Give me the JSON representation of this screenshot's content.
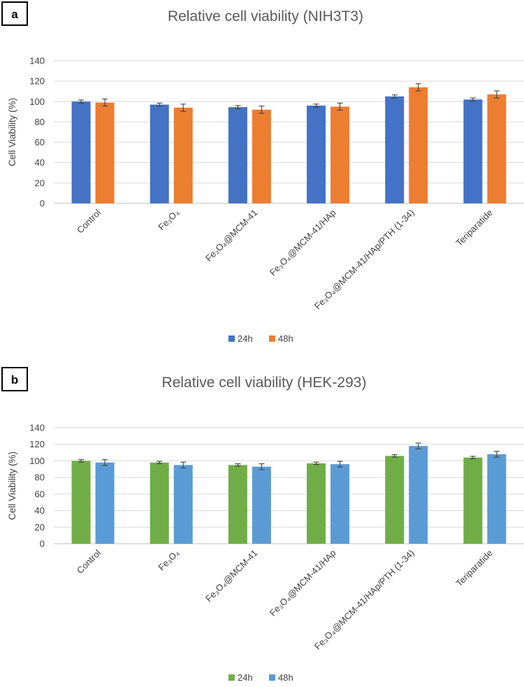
{
  "chart_data": [
    {
      "panel": "a",
      "type": "bar",
      "title": "Relative cell viability (NIH3T3)",
      "xlabel": "",
      "ylabel": "Cell Viability (%)",
      "ylim": [
        0,
        140
      ],
      "yticks": [
        0,
        20,
        40,
        60,
        80,
        100,
        120,
        140
      ],
      "grid": true,
      "legend": "bottom",
      "categories": [
        "Control",
        "Fe₃O₄",
        "Fe₃O₄@MCM-41",
        "Fe₃O₄@MCM-41/HAp",
        "Fe₃O₄@MCM-41/HAp/PTH (1-34)",
        "Teriparatide"
      ],
      "series": [
        {
          "name": "24h",
          "color": "#4472c4",
          "values": [
            100,
            97,
            94.5,
            96,
            105,
            102
          ],
          "errors": [
            1.5,
            1.5,
            1.5,
            1.5,
            1.5,
            1.5
          ]
        },
        {
          "name": "48h",
          "color": "#ed7d31",
          "values": [
            99,
            94,
            92,
            95,
            114,
            107
          ],
          "errors": [
            3.5,
            3.5,
            3.5,
            3.5,
            3.5,
            3.5
          ]
        }
      ]
    },
    {
      "panel": "b",
      "type": "bar",
      "title": "Relative cell viability (HEK-293)",
      "xlabel": "",
      "ylabel": "Cell Viability (%)",
      "ylim": [
        0,
        140
      ],
      "yticks": [
        0,
        20,
        40,
        60,
        80,
        100,
        120,
        140
      ],
      "grid": true,
      "legend": "bottom",
      "categories": [
        "Control",
        "Fe₃O₄",
        "Fe₃O₄@MCM-41",
        "Fe₃O₄@MCM-41/HAp",
        "Fe₃O₄@MCM-41/HAp/PTH (1-34)",
        "Teriparatide"
      ],
      "series": [
        {
          "name": "24h",
          "color": "#70ad47",
          "values": [
            100,
            98,
            95,
            97,
            106,
            104
          ],
          "errors": [
            1.5,
            1.5,
            1.5,
            1.5,
            1.5,
            1.5
          ]
        },
        {
          "name": "48h",
          "color": "#5b9bd5",
          "values": [
            98,
            95,
            93,
            96,
            118,
            108
          ],
          "errors": [
            3.5,
            3.5,
            3.5,
            3.5,
            3.5,
            3.5
          ]
        }
      ]
    }
  ]
}
